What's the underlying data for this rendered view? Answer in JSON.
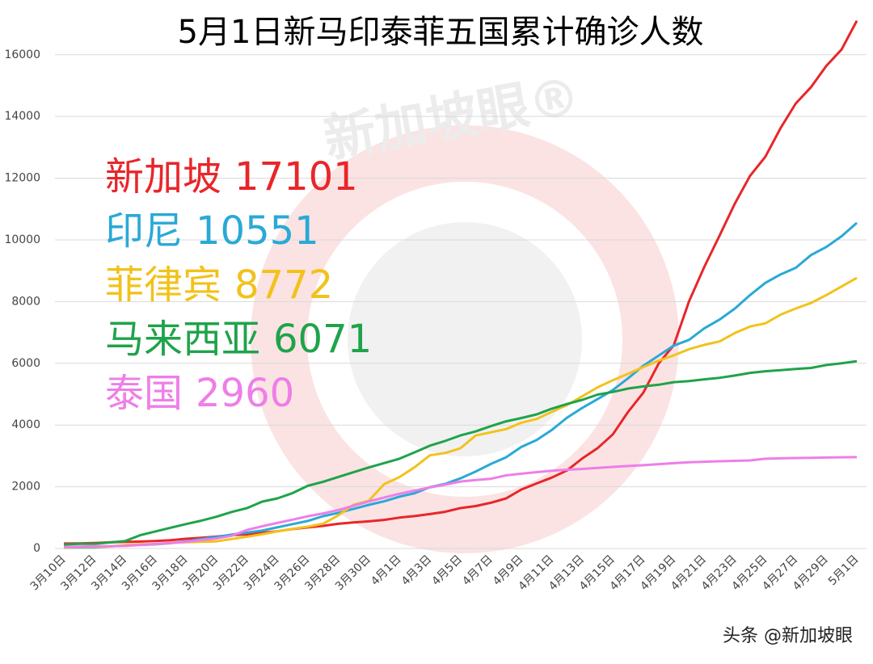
{
  "chart_data": {
    "type": "line",
    "title": "5月1日新马印泰菲五国累计确诊人数",
    "categories": [
      "3月10日",
      null,
      "3月12日",
      null,
      "3月14日",
      null,
      "3月16日",
      null,
      "3月18日",
      null,
      "3月20日",
      null,
      "3月22日",
      null,
      "3月24日",
      null,
      "3月26日",
      null,
      "3月28日",
      null,
      "3月30日",
      null,
      "4月1日",
      null,
      "4月3日",
      null,
      "4月5日",
      null,
      "4月7日",
      null,
      "4月9日",
      null,
      "4月11日",
      null,
      "4月13日",
      null,
      "4月15日",
      null,
      "4月17日",
      null,
      "4月19日",
      null,
      "4月21日",
      null,
      "4月23日",
      null,
      "4月25日",
      null,
      "4月27日",
      null,
      "4月29日",
      null,
      "5月1日"
    ],
    "series": [
      {
        "name": "新加坡",
        "color": "#e8262a",
        "values": [
          160,
          166,
          178,
          200,
          212,
          226,
          243,
          266,
          313,
          345,
          385,
          432,
          455,
          509,
          558,
          631,
          683,
          732,
          802,
          844,
          879,
          926,
          1000,
          1049,
          1114,
          1189,
          1309,
          1375,
          1481,
          1623,
          1910,
          2108,
          2299,
          2532,
          2918,
          3252,
          3699,
          4427,
          5050,
          5992,
          6588,
          8014,
          9125,
          10141,
          11178,
          12075,
          12693,
          13624,
          14423,
          14951,
          15641,
          16169,
          17101
        ]
      },
      {
        "name": "印尼",
        "color": "#2aa9d6",
        "values": [
          27,
          34,
          34,
          69,
          96,
          117,
          134,
          172,
          227,
          309,
          369,
          450,
          514,
          579,
          686,
          790,
          893,
          1046,
          1155,
          1285,
          1414,
          1528,
          1677,
          1790,
          1986,
          2092,
          2273,
          2491,
          2738,
          2956,
          3293,
          3512,
          3842,
          4241,
          4557,
          4839,
          5136,
          5516,
          5923,
          6248,
          6575,
          6760,
          7135,
          7418,
          7775,
          8211,
          8607,
          8882,
          9096,
          9511,
          9771,
          10118,
          10551
        ]
      },
      {
        "name": "菲律宾",
        "color": "#f2c21b",
        "values": [
          33,
          49,
          52,
          64,
          111,
          140,
          142,
          187,
          202,
          217,
          230,
          307,
          380,
          462,
          552,
          636,
          707,
          803,
          1075,
          1418,
          1546,
          2084,
          2311,
          2633,
          3018,
          3094,
          3246,
          3660,
          3764,
          3870,
          4076,
          4195,
          4428,
          4648,
          4932,
          5223,
          5453,
          5660,
          5878,
          6087,
          6259,
          6459,
          6599,
          6710,
          6981,
          7192,
          7294,
          7579,
          7777,
          7958,
          8212,
          8488,
          8772
        ]
      },
      {
        "name": "马来西亚",
        "color": "#1fa34a",
        "values": [
          129,
          149,
          149,
          197,
          238,
          428,
          553,
          673,
          790,
          900,
          1030,
          1183,
          1306,
          1518,
          1624,
          1796,
          2031,
          2161,
          2320,
          2470,
          2626,
          2766,
          2908,
          3116,
          3333,
          3483,
          3662,
          3793,
          3963,
          4119,
          4228,
          4346,
          4530,
          4683,
          4817,
          4987,
          5072,
          5182,
          5251,
          5305,
          5389,
          5425,
          5482,
          5532,
          5603,
          5691,
          5742,
          5780,
          5820,
          5851,
          5945,
          6002,
          6071
        ]
      },
      {
        "name": "泰国",
        "color": "#ee7ee8",
        "values": [
          53,
          59,
          70,
          75,
          82,
          114,
          147,
          177,
          212,
          272,
          322,
          411,
          599,
          721,
          827,
          934,
          1045,
          1136,
          1245,
          1388,
          1524,
          1651,
          1771,
          1875,
          1978,
          2067,
          2169,
          2220,
          2258,
          2369,
          2423,
          2473,
          2518,
          2551,
          2579,
          2613,
          2643,
          2672,
          2700,
          2733,
          2765,
          2792,
          2811,
          2826,
          2839,
          2854,
          2907,
          2922,
          2931,
          2938,
          2947,
          2954,
          2960
        ]
      }
    ],
    "ylim": [
      0,
      17250
    ],
    "yticks": [
      0,
      2000,
      4000,
      6000,
      8000,
      10000,
      12000,
      14000,
      16000
    ],
    "grid": true
  },
  "watermark": "新加坡眼®",
  "footer": "头条 @新加坡眼"
}
